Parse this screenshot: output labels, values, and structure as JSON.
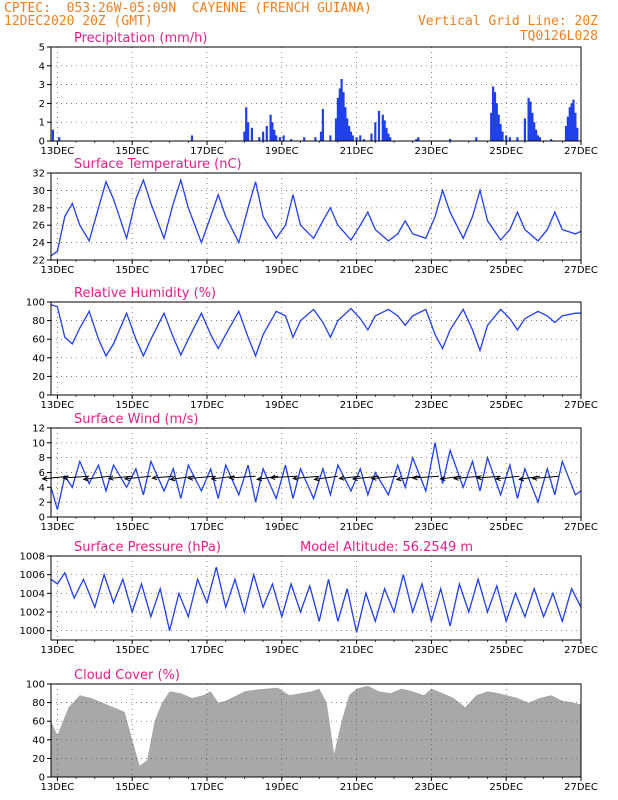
{
  "header": {
    "line1": "CPTEC:  053:26W-05:09N  CAYENNE (FRENCH GUIANA)",
    "line2": "12DEC2020 20Z (GMT)",
    "grid_note": "Vertical Grid Line: 20Z",
    "run_id": "TQ0126L028"
  },
  "colors": {
    "header": "#f08020",
    "title": "#e0208a",
    "series": "#2040ee",
    "cloud": "#a8a8a8"
  },
  "x_axis": {
    "tick_labels": [
      "13DEC",
      "15DEC",
      "17DEC",
      "19DEC",
      "21DEC",
      "23DEC",
      "25DEC",
      "27DEC"
    ],
    "tick_days": [
      13,
      15,
      17,
      19,
      21,
      23,
      25,
      27
    ],
    "range_days": [
      12.83,
      27.0
    ]
  },
  "chart_data": [
    {
      "type": "bar",
      "title": "Precipitation (mm/h)",
      "ylim": [
        0,
        5
      ],
      "yticks": [
        0,
        1,
        2,
        3,
        4,
        5
      ],
      "x_days": [
        12.88,
        13.05,
        16.6,
        18.0,
        18.05,
        18.1,
        18.2,
        18.4,
        18.5,
        18.6,
        18.7,
        18.75,
        18.8,
        18.85,
        18.95,
        19.05,
        19.25,
        19.6,
        19.9,
        20.05,
        20.1,
        20.3,
        20.45,
        20.5,
        20.55,
        20.6,
        20.65,
        20.7,
        20.75,
        20.8,
        20.85,
        20.9,
        21.0,
        21.1,
        21.2,
        21.4,
        21.5,
        21.6,
        21.7,
        21.75,
        21.8,
        21.85,
        21.9,
        22.6,
        22.65,
        23.5,
        24.2,
        24.6,
        24.65,
        24.7,
        24.75,
        24.8,
        24.85,
        24.9,
        25.0,
        25.1,
        25.3,
        25.5,
        25.6,
        25.65,
        25.7,
        25.75,
        25.8,
        25.85,
        25.9,
        26.2,
        26.6,
        26.65,
        26.7,
        26.75,
        26.8,
        26.85,
        26.9
      ],
      "values": [
        0.6,
        0.2,
        0.3,
        0.5,
        1.8,
        1.0,
        0.7,
        0.2,
        0.5,
        0.8,
        1.4,
        1.0,
        0.6,
        0.3,
        0.2,
        0.3,
        0.1,
        0.2,
        0.2,
        0.5,
        1.7,
        0.3,
        1.2,
        2.3,
        2.8,
        3.3,
        2.6,
        1.8,
        1.2,
        0.8,
        0.5,
        0.3,
        0.2,
        0.3,
        0.1,
        0.4,
        1.0,
        1.6,
        1.4,
        1.1,
        0.7,
        0.4,
        0.2,
        0.1,
        0.2,
        0.1,
        0.2,
        1.5,
        2.9,
        2.6,
        2.0,
        1.4,
        0.9,
        0.5,
        0.3,
        0.2,
        0.2,
        1.2,
        2.3,
        2.1,
        1.5,
        1.0,
        0.6,
        0.3,
        0.2,
        0.1,
        0.8,
        1.3,
        1.8,
        2.0,
        2.2,
        1.5,
        0.7
      ]
    },
    {
      "type": "line",
      "title": "Surface Temperature (nC)",
      "ylim": [
        22,
        32
      ],
      "yticks": [
        22,
        24,
        26,
        28,
        30,
        32
      ],
      "x_days": [
        12.83,
        13.0,
        13.2,
        13.4,
        13.6,
        13.85,
        14.1,
        14.3,
        14.5,
        14.85,
        15.1,
        15.3,
        15.5,
        15.85,
        16.1,
        16.3,
        16.5,
        16.85,
        17.1,
        17.3,
        17.5,
        17.85,
        18.1,
        18.3,
        18.5,
        18.85,
        19.1,
        19.3,
        19.5,
        19.85,
        20.1,
        20.3,
        20.5,
        20.85,
        21.1,
        21.3,
        21.5,
        21.85,
        22.1,
        22.3,
        22.5,
        22.85,
        23.1,
        23.3,
        23.5,
        23.85,
        24.1,
        24.3,
        24.5,
        24.85,
        25.1,
        25.3,
        25.5,
        25.85,
        26.1,
        26.3,
        26.5,
        26.85,
        27.0
      ],
      "y": [
        22.5,
        23.0,
        27.0,
        28.5,
        26.0,
        24.2,
        28.0,
        31.0,
        29.0,
        24.5,
        29.0,
        31.2,
        28.5,
        24.5,
        28.5,
        31.2,
        28.0,
        24.0,
        27.0,
        29.5,
        27.0,
        24.0,
        28.0,
        31.0,
        27.0,
        24.5,
        26.0,
        29.5,
        26.0,
        24.5,
        26.5,
        28.0,
        26.0,
        24.3,
        26.0,
        27.5,
        25.5,
        24.2,
        25.0,
        26.5,
        25.0,
        24.5,
        27.0,
        30.0,
        27.5,
        24.5,
        27.0,
        30.0,
        26.5,
        24.3,
        25.5,
        27.5,
        25.5,
        24.2,
        25.5,
        27.5,
        25.5,
        25.0,
        25.3
      ]
    },
    {
      "type": "line",
      "title": "Relative Humidity (%)",
      "ylim": [
        0,
        100
      ],
      "yticks": [
        0,
        20,
        40,
        60,
        80,
        100
      ],
      "x_days": [
        12.83,
        13.0,
        13.2,
        13.4,
        13.6,
        13.85,
        14.1,
        14.3,
        14.5,
        14.85,
        15.1,
        15.3,
        15.5,
        15.85,
        16.1,
        16.3,
        16.5,
        16.85,
        17.1,
        17.3,
        17.5,
        17.85,
        18.1,
        18.3,
        18.5,
        18.85,
        19.1,
        19.3,
        19.5,
        19.85,
        20.1,
        20.3,
        20.5,
        20.85,
        21.1,
        21.3,
        21.5,
        21.85,
        22.1,
        22.3,
        22.5,
        22.85,
        23.1,
        23.3,
        23.5,
        23.85,
        24.1,
        24.3,
        24.5,
        24.85,
        25.1,
        25.3,
        25.5,
        25.85,
        26.1,
        26.3,
        26.5,
        26.85,
        27.0
      ],
      "y": [
        97,
        95,
        62,
        55,
        72,
        90,
        60,
        42,
        55,
        88,
        60,
        42,
        60,
        88,
        62,
        43,
        60,
        88,
        65,
        50,
        65,
        90,
        62,
        42,
        65,
        90,
        85,
        62,
        80,
        92,
        78,
        62,
        80,
        93,
        82,
        70,
        85,
        92,
        85,
        75,
        85,
        92,
        65,
        50,
        70,
        92,
        70,
        48,
        75,
        92,
        82,
        70,
        82,
        90,
        85,
        78,
        85,
        88,
        88
      ]
    },
    {
      "type": "line",
      "title": "Surface Wind (m/s)",
      "ylim": [
        0,
        12
      ],
      "yticks": [
        0,
        2,
        4,
        6,
        8,
        10,
        12
      ],
      "x_days": [
        12.83,
        13.0,
        13.2,
        13.4,
        13.6,
        13.85,
        14.1,
        14.3,
        14.5,
        14.85,
        15.1,
        15.3,
        15.5,
        15.85,
        16.1,
        16.3,
        16.5,
        16.85,
        17.1,
        17.3,
        17.5,
        17.85,
        18.1,
        18.3,
        18.5,
        18.85,
        19.1,
        19.3,
        19.5,
        19.85,
        20.1,
        20.3,
        20.5,
        20.85,
        21.1,
        21.3,
        21.5,
        21.85,
        22.1,
        22.3,
        22.5,
        22.85,
        23.1,
        23.3,
        23.5,
        23.85,
        24.1,
        24.3,
        24.5,
        24.85,
        25.1,
        25.3,
        25.5,
        25.85,
        26.1,
        26.3,
        26.5,
        26.85,
        27.0
      ],
      "y": [
        4.0,
        1.0,
        5.5,
        4.0,
        7.5,
        4.5,
        7.0,
        3.5,
        7.0,
        4.0,
        6.5,
        3.0,
        7.5,
        3.5,
        6.5,
        2.5,
        7.0,
        3.5,
        6.5,
        2.5,
        7.0,
        3.0,
        7.0,
        2.0,
        6.5,
        2.5,
        7.0,
        2.5,
        6.5,
        2.5,
        6.5,
        3.0,
        7.0,
        3.5,
        6.5,
        3.0,
        6.0,
        3.0,
        7.0,
        4.0,
        8.0,
        3.5,
        10.0,
        4.5,
        9.0,
        4.0,
        7.5,
        3.5,
        8.0,
        3.0,
        7.0,
        2.5,
        6.5,
        2.0,
        6.5,
        3.0,
        7.5,
        3.0,
        3.5
      ],
      "arrow_days": [
        13.3,
        13.85,
        14.4,
        15.0,
        15.5,
        16.1,
        16.65,
        17.2,
        17.75,
        18.3,
        18.9,
        19.4,
        20.0,
        20.5,
        21.1,
        21.6,
        22.1,
        22.7,
        23.2,
        23.8,
        24.3,
        24.85,
        25.35,
        25.9,
        26.4
      ],
      "arrow_dx": [
        -1.0,
        -1.0,
        -1.0,
        -0.9,
        -1.0,
        -0.8,
        -0.9,
        -1.0,
        -0.9,
        -1.0,
        -0.8,
        -1.0,
        -1.0,
        -0.9,
        -0.8,
        -1.0,
        -1.0,
        -0.9,
        -1.0,
        -0.8,
        -1.0,
        -0.9,
        -0.9,
        -0.8,
        -1.0
      ],
      "arrow_dy": [
        0.3,
        0.2,
        0.35,
        0.25,
        0.3,
        0.2,
        0.35,
        0.25,
        0.3,
        0.2,
        0.35,
        0.15,
        0.25,
        0.35,
        0.25,
        0.3,
        0.25,
        0.35,
        0.2,
        0.3,
        0.25,
        0.2,
        0.3,
        0.35,
        0.25
      ]
    },
    {
      "type": "line",
      "title": "Surface Pressure (hPa)",
      "subtitle": "Model Altitude: 56.2549 m",
      "ylim": [
        999,
        1008
      ],
      "yticks": [
        1000,
        1002,
        1004,
        1006,
        1008
      ],
      "x_days": [
        12.83,
        13.0,
        13.2,
        13.45,
        13.7,
        14.0,
        14.25,
        14.5,
        14.75,
        15.0,
        15.25,
        15.5,
        15.75,
        16.0,
        16.25,
        16.5,
        16.75,
        17.0,
        17.25,
        17.5,
        17.75,
        18.0,
        18.25,
        18.5,
        18.75,
        19.0,
        19.25,
        19.5,
        19.75,
        20.0,
        20.25,
        20.5,
        20.75,
        21.0,
        21.25,
        21.5,
        21.75,
        22.0,
        22.25,
        22.5,
        22.75,
        23.0,
        23.25,
        23.5,
        23.75,
        24.0,
        24.25,
        24.5,
        24.75,
        25.0,
        25.25,
        25.5,
        25.75,
        26.0,
        26.25,
        26.5,
        26.75,
        27.0
      ],
      "y": [
        1005.5,
        1005.0,
        1006.2,
        1003.5,
        1005.5,
        1002.5,
        1006.0,
        1003.0,
        1005.5,
        1002.0,
        1005.0,
        1001.5,
        1004.5,
        1000.0,
        1004.0,
        1001.5,
        1005.5,
        1003.0,
        1006.8,
        1002.5,
        1005.5,
        1002.0,
        1006.0,
        1002.5,
        1005.0,
        1001.5,
        1005.0,
        1002.0,
        1004.8,
        1001.0,
        1005.5,
        1001.0,
        1004.5,
        999.8,
        1004.0,
        1001.0,
        1004.5,
        1002.0,
        1006.0,
        1002.0,
        1005.0,
        1001.0,
        1004.5,
        1000.5,
        1005.0,
        1002.0,
        1005.5,
        1002.0,
        1004.8,
        1001.0,
        1004.0,
        1001.5,
        1004.5,
        1001.5,
        1004.0,
        1001.0,
        1004.5,
        1002.5
      ]
    },
    {
      "type": "area",
      "title": "Cloud Cover (%)",
      "ylim": [
        0,
        100
      ],
      "yticks": [
        0,
        20,
        40,
        60,
        80,
        100
      ],
      "x_days": [
        12.83,
        13.0,
        13.3,
        13.6,
        13.9,
        14.2,
        14.5,
        14.8,
        15.0,
        15.2,
        15.4,
        15.6,
        15.8,
        16.0,
        16.3,
        16.6,
        16.9,
        17.1,
        17.3,
        17.5,
        17.8,
        18.0,
        18.3,
        18.6,
        18.9,
        19.2,
        19.5,
        19.8,
        20.0,
        20.2,
        20.4,
        20.6,
        20.8,
        21.0,
        21.3,
        21.6,
        21.9,
        22.2,
        22.5,
        22.8,
        23.0,
        23.3,
        23.6,
        23.9,
        24.2,
        24.5,
        24.8,
        25.0,
        25.3,
        25.6,
        25.9,
        26.2,
        26.5,
        26.8,
        27.0
      ],
      "y": [
        60,
        45,
        75,
        88,
        85,
        80,
        75,
        70,
        40,
        12,
        18,
        60,
        80,
        92,
        90,
        85,
        88,
        92,
        80,
        82,
        88,
        92,
        94,
        95,
        96,
        88,
        90,
        92,
        95,
        80,
        25,
        60,
        88,
        95,
        98,
        92,
        90,
        95,
        92,
        88,
        95,
        90,
        85,
        75,
        88,
        92,
        90,
        88,
        85,
        80,
        85,
        88,
        82,
        80,
        78
      ]
    }
  ]
}
